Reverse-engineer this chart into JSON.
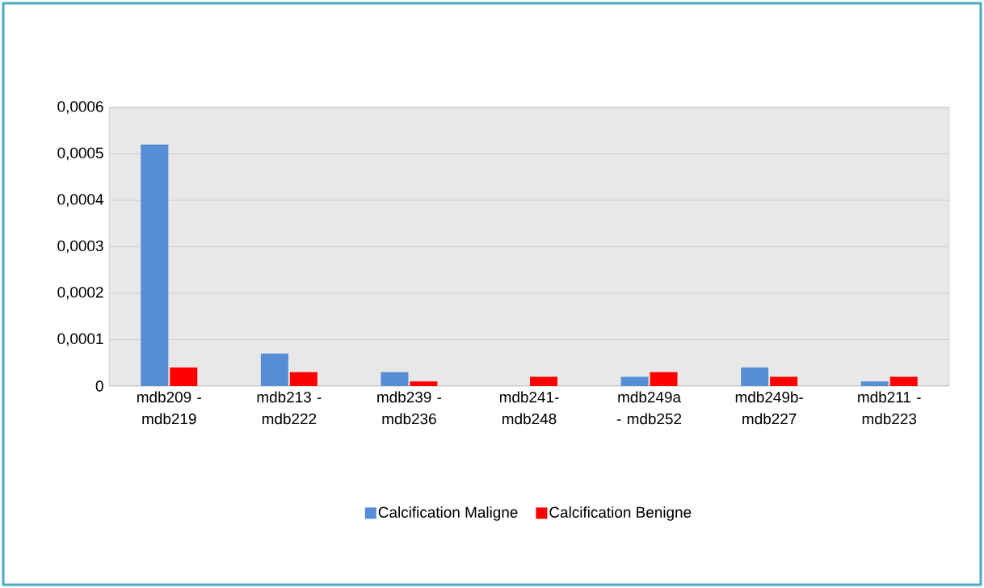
{
  "chart_data": {
    "type": "bar",
    "categories": [
      "mdb209 - mdb219",
      "mdb213 - mdb222",
      "mdb239 - mdb236",
      "mdb241-mdb248",
      "mdb249a - mdb252",
      "mdb249b-mdb227",
      "mdb211 - mdb223"
    ],
    "series": [
      {
        "name": "Calcification Maligne",
        "color": "#558ed5",
        "values": [
          0.00052,
          7e-05,
          3e-05,
          0.0,
          2e-05,
          4e-05,
          1e-05
        ]
      },
      {
        "name": "Calcification Benigne",
        "color": "#ff0000",
        "values": [
          4e-05,
          3e-05,
          1e-05,
          2e-05,
          3e-05,
          2e-05,
          2e-05
        ]
      }
    ],
    "ylim": [
      0,
      0.0006
    ],
    "yticks": [
      0,
      {
        "value": 0.0001,
        "label": "0,0001"
      },
      {
        "value": 0.0002,
        "label": "0,0002"
      },
      {
        "value": 0.0003,
        "label": "0,0003"
      },
      {
        "value": 0.0004,
        "label": "0,0004"
      },
      {
        "value": 0.0005,
        "label": "0,0005"
      },
      {
        "value": 0.0006,
        "label": "0,0006"
      }
    ],
    "grid": "y",
    "legend": "bottom"
  }
}
